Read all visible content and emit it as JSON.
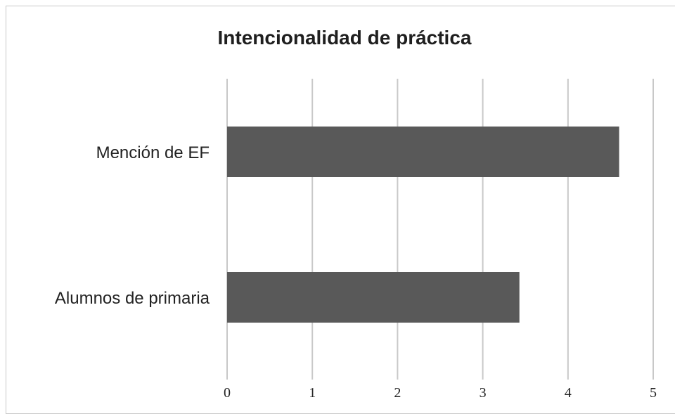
{
  "chart_data": {
    "type": "bar",
    "orientation": "horizontal",
    "title": "Intencionalidad de práctica",
    "categories": [
      "Mención de EF",
      "Alumnos de primaria"
    ],
    "values": [
      4.6,
      3.43
    ],
    "xlim": [
      0,
      5
    ],
    "xticks": [
      "0",
      "1",
      "2",
      "3",
      "4",
      "5"
    ],
    "xlabel": "",
    "ylabel": "",
    "grid": true,
    "bar_color": "#595959",
    "grid_color": "#c8c8c8"
  }
}
